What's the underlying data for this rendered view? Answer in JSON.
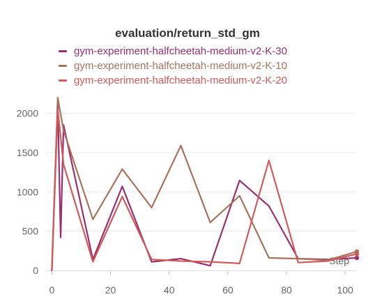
{
  "chart_data": {
    "type": "line",
    "title": "evaluation/return_std_gm",
    "xlabel": "Step",
    "ylabel": "",
    "xlim": [
      -2,
      104
    ],
    "ylim": [
      0,
      2200
    ],
    "xticks": [
      0,
      20,
      40,
      60,
      80,
      100
    ],
    "yticks": [
      0,
      500,
      1000,
      1500,
      2000
    ],
    "grid": true,
    "legend_position": "top",
    "series": [
      {
        "name": "gym-experiment-halfcheetah-medium-v2-K-30",
        "color": "#9a2f6e",
        "x": [
          0,
          2,
          3,
          4,
          14,
          24,
          34,
          44,
          54,
          64,
          74,
          84,
          94,
          104
        ],
        "y": [
          0,
          2150,
          420,
          1850,
          140,
          1070,
          110,
          150,
          60,
          1145,
          820,
          150,
          140,
          160
        ]
      },
      {
        "name": "gym-experiment-halfcheetah-medium-v2-K-10",
        "color": "#a8735c",
        "x": [
          0,
          2,
          4,
          14,
          24,
          34,
          44,
          54,
          64,
          74,
          84,
          94,
          104
        ],
        "y": [
          0,
          2200,
          1780,
          650,
          1290,
          800,
          1590,
          610,
          950,
          160,
          150,
          130,
          240
        ]
      },
      {
        "name": "gym-experiment-halfcheetah-medium-v2-K-20",
        "color": "#d15a5a",
        "x": [
          0,
          2,
          4,
          14,
          24,
          34,
          44,
          54,
          64,
          74,
          84,
          94,
          104
        ],
        "y": [
          0,
          2050,
          1350,
          110,
          940,
          140,
          120,
          110,
          90,
          1400,
          100,
          120,
          210
        ]
      }
    ]
  }
}
